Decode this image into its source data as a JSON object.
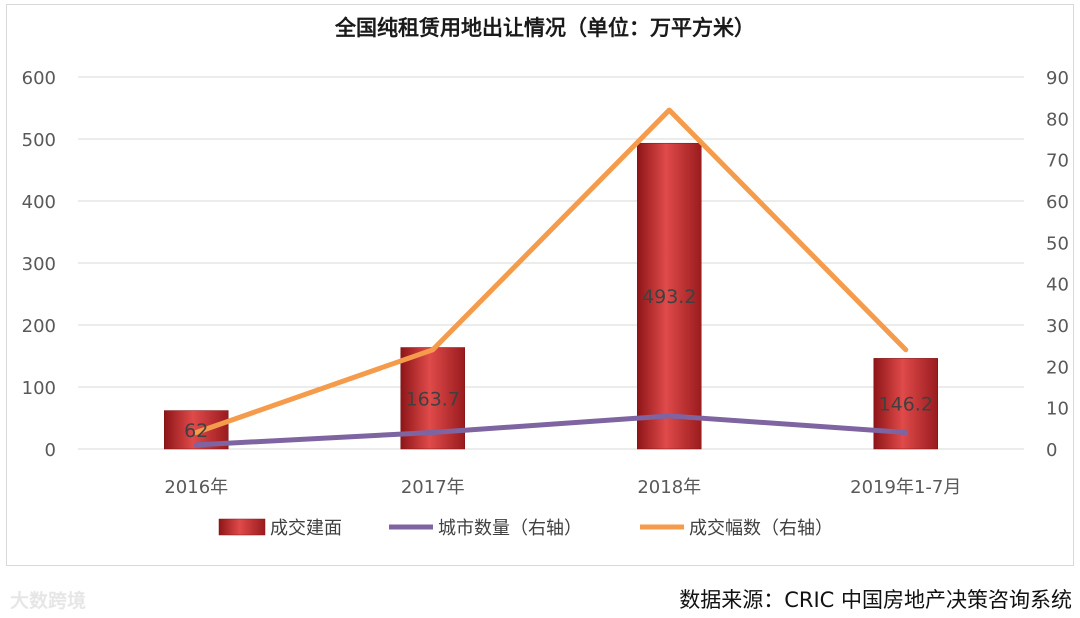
{
  "chart_data": {
    "type": "bar",
    "title": "全国纯租赁用地出让情况（单位：万平方米）",
    "categories": [
      "2016年",
      "2017年",
      "2018年",
      "2019年1-7月"
    ],
    "series": [
      {
        "name": "成交建面",
        "kind": "bar",
        "axis": "left",
        "values": [
          62,
          163.7,
          493.2,
          146.2
        ],
        "color": "#c0282b"
      },
      {
        "name": "城市数量（右轴）",
        "kind": "line",
        "axis": "right",
        "values": [
          1,
          4,
          8,
          4
        ],
        "color": "#7e64a0"
      },
      {
        "name": "成交幅数（右轴）",
        "kind": "line",
        "axis": "right",
        "values": [
          4,
          24,
          82,
          24
        ],
        "color": "#f59b4c"
      }
    ],
    "bar_labels": [
      "62",
      "163.7",
      "493.2",
      "146.2"
    ],
    "y_left": {
      "min": 0,
      "max": 600,
      "ticks": [
        0,
        100,
        200,
        300,
        400,
        500,
        600
      ]
    },
    "y_right": {
      "min": 0,
      "max": 90,
      "ticks": [
        0,
        10,
        20,
        30,
        40,
        50,
        60,
        70,
        80,
        90
      ]
    },
    "grid": true,
    "legend_position": "bottom"
  },
  "source": "数据来源：CRIC 中国房地产决策咨询系统",
  "watermark": "大数跨境"
}
